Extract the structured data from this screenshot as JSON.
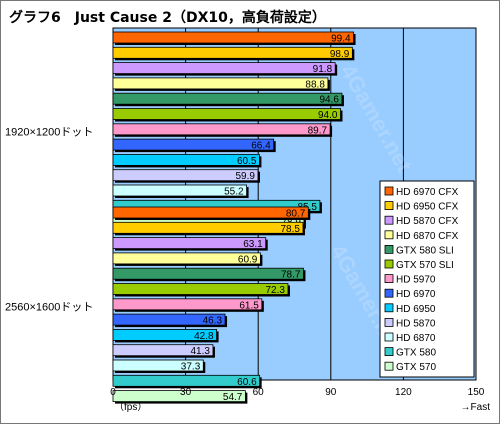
{
  "title": "グラフ6　Just Cause 2（DX10，高負荷設定）",
  "chart_data": {
    "type": "bar",
    "orientation": "horizontal",
    "xlim": [
      0,
      150
    ],
    "xticks": [
      0,
      30,
      60,
      90,
      120,
      150
    ],
    "xlabel_left": "（fps）",
    "xlabel_right": "→Fast",
    "grid": true,
    "legend_position": "right",
    "categories": [
      "1920×1200ドット",
      "2560×1600ドット"
    ],
    "series": [
      {
        "name": "HD 6970 CFX",
        "color": "#ff6600",
        "values": [
          99.4,
          80.7
        ]
      },
      {
        "name": "HD 6950 CFX",
        "color": "#ffcc00",
        "values": [
          98.9,
          78.5
        ]
      },
      {
        "name": "HD 5870 CFX",
        "color": "#cc99ff",
        "values": [
          91.8,
          63.1
        ]
      },
      {
        "name": "HD 6870 CFX",
        "color": "#ffff99",
        "values": [
          88.8,
          60.9
        ]
      },
      {
        "name": "GTX 580 SLI",
        "color": "#339966",
        "values": [
          94.6,
          78.7
        ]
      },
      {
        "name": "GTX 570 SLI",
        "color": "#99cc00",
        "values": [
          94.0,
          72.3
        ]
      },
      {
        "name": "HD 5970",
        "color": "#ff99cc",
        "values": [
          89.7,
          61.5
        ]
      },
      {
        "name": "HD 6970",
        "color": "#3366ff",
        "values": [
          66.4,
          46.3
        ]
      },
      {
        "name": "HD 6950",
        "color": "#00ccff",
        "values": [
          60.5,
          42.8
        ]
      },
      {
        "name": "HD 5870",
        "color": "#ccccff",
        "values": [
          59.9,
          41.3
        ]
      },
      {
        "name": "HD 6870",
        "color": "#ccffff",
        "values": [
          55.2,
          37.3
        ]
      },
      {
        "name": "GTX 580",
        "color": "#33cccc",
        "values": [
          85.5,
          60.6
        ]
      },
      {
        "name": "GTX 570",
        "color": "#ccffcc",
        "values": [
          78.9,
          54.7
        ]
      }
    ]
  }
}
